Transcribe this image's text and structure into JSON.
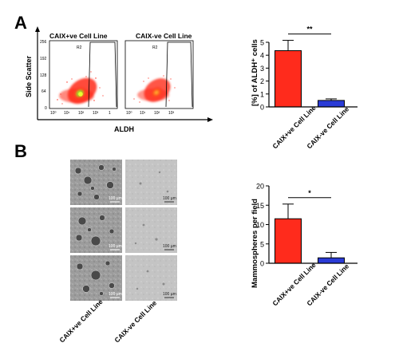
{
  "panels": {
    "a": "A",
    "b": "B"
  },
  "flow": {
    "titles": [
      "CAIX+ve Cell Line",
      "CAIX-ve Cell Line"
    ],
    "gate": "R2",
    "y_label": "Side Scatter",
    "x_label": "ALDH",
    "y_ticks": [
      "256",
      "192",
      "128",
      "64",
      "0"
    ],
    "x_ticks": [
      "10⁰",
      "10¹",
      "10²",
      "10³",
      "1"
    ]
  },
  "micro": {
    "columns": [
      "CAIX+ve Cell Line",
      "CAIX-ve Cell Line"
    ],
    "scale_label": "100 µm"
  },
  "colors": {
    "red": "#ff2b1c",
    "blue": "#2a3bd6"
  },
  "chart_data": [
    {
      "type": "bar",
      "categories": [
        "CAIX+ve Cell Line",
        "CAIX-ve Cell Line"
      ],
      "values": [
        4.35,
        0.5
      ],
      "errors": [
        0.8,
        0.12
      ],
      "ylabel": "[%] of ALDH⁺ cells",
      "ylim": [
        0,
        5
      ],
      "yticks": [
        "0",
        "1",
        "2",
        "3",
        "4",
        "5"
      ],
      "significance": "**"
    },
    {
      "type": "bar",
      "categories": [
        "CAIX+ve Cell Line",
        "CAIX-ve Cell Line"
      ],
      "values": [
        11.5,
        1.4
      ],
      "errors": [
        3.8,
        1.4
      ],
      "ylabel": "Mammospheres per field",
      "ylim": [
        0,
        20
      ],
      "yticks": [
        "0",
        "5",
        "10",
        "15",
        "20"
      ],
      "significance": "*"
    }
  ]
}
